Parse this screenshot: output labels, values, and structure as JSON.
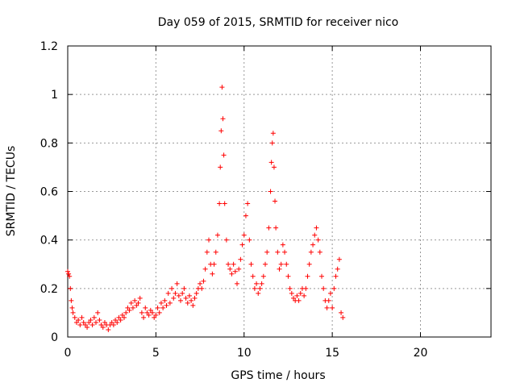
{
  "chart_data": {
    "type": "scatter",
    "title": "Day 059 of 2015, SRMTID for receiver nico",
    "xlabel": "GPS time / hours",
    "ylabel": "SRMTID / TECUs",
    "xlim": [
      0,
      24
    ],
    "ylim": [
      0,
      1.2
    ],
    "xticks": [
      0,
      5,
      10,
      15,
      20
    ],
    "yticks": [
      0,
      0.2,
      0.4,
      0.6,
      0.8,
      1,
      1.2
    ],
    "xtick_labels": [
      "0",
      "5",
      "10",
      "15",
      "20"
    ],
    "ytick_labels": [
      "0",
      "0.2",
      "0.4",
      "0.6",
      "0.8",
      "1",
      "1.2"
    ],
    "grid": true,
    "marker": "+",
    "series": [
      {
        "name": "SRMTID",
        "color": "#ff0000",
        "points": [
          [
            0.0,
            0.27
          ],
          [
            0.05,
            0.26
          ],
          [
            0.1,
            0.25
          ],
          [
            0.15,
            0.2
          ],
          [
            0.2,
            0.15
          ],
          [
            0.25,
            0.12
          ],
          [
            0.3,
            0.1
          ],
          [
            0.4,
            0.08
          ],
          [
            0.5,
            0.06
          ],
          [
            0.6,
            0.07
          ],
          [
            0.7,
            0.05
          ],
          [
            0.8,
            0.08
          ],
          [
            0.9,
            0.06
          ],
          [
            1.0,
            0.05
          ],
          [
            1.1,
            0.04
          ],
          [
            1.2,
            0.06
          ],
          [
            1.3,
            0.07
          ],
          [
            1.4,
            0.05
          ],
          [
            1.5,
            0.08
          ],
          [
            1.6,
            0.06
          ],
          [
            1.7,
            0.1
          ],
          [
            1.8,
            0.07
          ],
          [
            1.9,
            0.05
          ],
          [
            2.0,
            0.04
          ],
          [
            2.1,
            0.06
          ],
          [
            2.2,
            0.05
          ],
          [
            2.3,
            0.03
          ],
          [
            2.4,
            0.05
          ],
          [
            2.5,
            0.06
          ],
          [
            2.6,
            0.05
          ],
          [
            2.7,
            0.07
          ],
          [
            2.8,
            0.06
          ],
          [
            2.9,
            0.08
          ],
          [
            3.0,
            0.07
          ],
          [
            3.1,
            0.09
          ],
          [
            3.2,
            0.08
          ],
          [
            3.3,
            0.1
          ],
          [
            3.4,
            0.12
          ],
          [
            3.5,
            0.11
          ],
          [
            3.6,
            0.14
          ],
          [
            3.7,
            0.12
          ],
          [
            3.8,
            0.15
          ],
          [
            3.9,
            0.13
          ],
          [
            4.0,
            0.14
          ],
          [
            4.1,
            0.16
          ],
          [
            4.2,
            0.1
          ],
          [
            4.3,
            0.08
          ],
          [
            4.4,
            0.12
          ],
          [
            4.5,
            0.1
          ],
          [
            4.6,
            0.09
          ],
          [
            4.7,
            0.11
          ],
          [
            4.8,
            0.1
          ],
          [
            4.9,
            0.08
          ],
          [
            5.0,
            0.09
          ],
          [
            5.1,
            0.12
          ],
          [
            5.2,
            0.1
          ],
          [
            5.3,
            0.14
          ],
          [
            5.4,
            0.12
          ],
          [
            5.5,
            0.15
          ],
          [
            5.6,
            0.13
          ],
          [
            5.7,
            0.18
          ],
          [
            5.8,
            0.14
          ],
          [
            5.9,
            0.2
          ],
          [
            6.0,
            0.16
          ],
          [
            6.1,
            0.18
          ],
          [
            6.2,
            0.22
          ],
          [
            6.3,
            0.17
          ],
          [
            6.4,
            0.15
          ],
          [
            6.5,
            0.18
          ],
          [
            6.6,
            0.2
          ],
          [
            6.7,
            0.16
          ],
          [
            6.8,
            0.14
          ],
          [
            6.9,
            0.17
          ],
          [
            7.0,
            0.15
          ],
          [
            7.1,
            0.13
          ],
          [
            7.2,
            0.16
          ],
          [
            7.3,
            0.18
          ],
          [
            7.4,
            0.2
          ],
          [
            7.5,
            0.22
          ],
          [
            7.6,
            0.2
          ],
          [
            7.7,
            0.23
          ],
          [
            7.8,
            0.28
          ],
          [
            7.9,
            0.35
          ],
          [
            8.0,
            0.4
          ],
          [
            8.1,
            0.3
          ],
          [
            8.2,
            0.26
          ],
          [
            8.3,
            0.3
          ],
          [
            8.4,
            0.35
          ],
          [
            8.5,
            0.42
          ],
          [
            8.6,
            0.55
          ],
          [
            8.65,
            0.7
          ],
          [
            8.7,
            0.85
          ],
          [
            8.75,
            1.03
          ],
          [
            8.8,
            0.9
          ],
          [
            8.85,
            0.75
          ],
          [
            8.9,
            0.55
          ],
          [
            9.0,
            0.4
          ],
          [
            9.1,
            0.3
          ],
          [
            9.2,
            0.28
          ],
          [
            9.3,
            0.26
          ],
          [
            9.4,
            0.3
          ],
          [
            9.5,
            0.27
          ],
          [
            9.6,
            0.22
          ],
          [
            9.7,
            0.28
          ],
          [
            9.8,
            0.32
          ],
          [
            9.9,
            0.38
          ],
          [
            10.0,
            0.42
          ],
          [
            10.1,
            0.5
          ],
          [
            10.2,
            0.55
          ],
          [
            10.3,
            0.4
          ],
          [
            10.4,
            0.3
          ],
          [
            10.5,
            0.25
          ],
          [
            10.6,
            0.2
          ],
          [
            10.7,
            0.22
          ],
          [
            10.8,
            0.18
          ],
          [
            10.9,
            0.2
          ],
          [
            11.0,
            0.22
          ],
          [
            11.1,
            0.25
          ],
          [
            11.2,
            0.3
          ],
          [
            11.3,
            0.35
          ],
          [
            11.4,
            0.45
          ],
          [
            11.5,
            0.6
          ],
          [
            11.55,
            0.72
          ],
          [
            11.6,
            0.8
          ],
          [
            11.65,
            0.84
          ],
          [
            11.7,
            0.7
          ],
          [
            11.75,
            0.56
          ],
          [
            11.8,
            0.45
          ],
          [
            11.9,
            0.35
          ],
          [
            12.0,
            0.28
          ],
          [
            12.1,
            0.3
          ],
          [
            12.2,
            0.38
          ],
          [
            12.3,
            0.35
          ],
          [
            12.4,
            0.3
          ],
          [
            12.5,
            0.25
          ],
          [
            12.6,
            0.2
          ],
          [
            12.7,
            0.18
          ],
          [
            12.8,
            0.16
          ],
          [
            12.9,
            0.15
          ],
          [
            13.0,
            0.17
          ],
          [
            13.1,
            0.15
          ],
          [
            13.2,
            0.18
          ],
          [
            13.3,
            0.2
          ],
          [
            13.4,
            0.17
          ],
          [
            13.5,
            0.2
          ],
          [
            13.6,
            0.25
          ],
          [
            13.7,
            0.3
          ],
          [
            13.8,
            0.35
          ],
          [
            13.9,
            0.38
          ],
          [
            14.0,
            0.42
          ],
          [
            14.1,
            0.45
          ],
          [
            14.2,
            0.4
          ],
          [
            14.3,
            0.35
          ],
          [
            14.4,
            0.25
          ],
          [
            14.5,
            0.2
          ],
          [
            14.6,
            0.15
          ],
          [
            14.7,
            0.12
          ],
          [
            14.8,
            0.15
          ],
          [
            14.9,
            0.18
          ],
          [
            15.0,
            0.12
          ],
          [
            15.1,
            0.2
          ],
          [
            15.2,
            0.25
          ],
          [
            15.3,
            0.28
          ],
          [
            15.4,
            0.32
          ],
          [
            15.5,
            0.1
          ],
          [
            15.6,
            0.08
          ]
        ]
      }
    ]
  }
}
